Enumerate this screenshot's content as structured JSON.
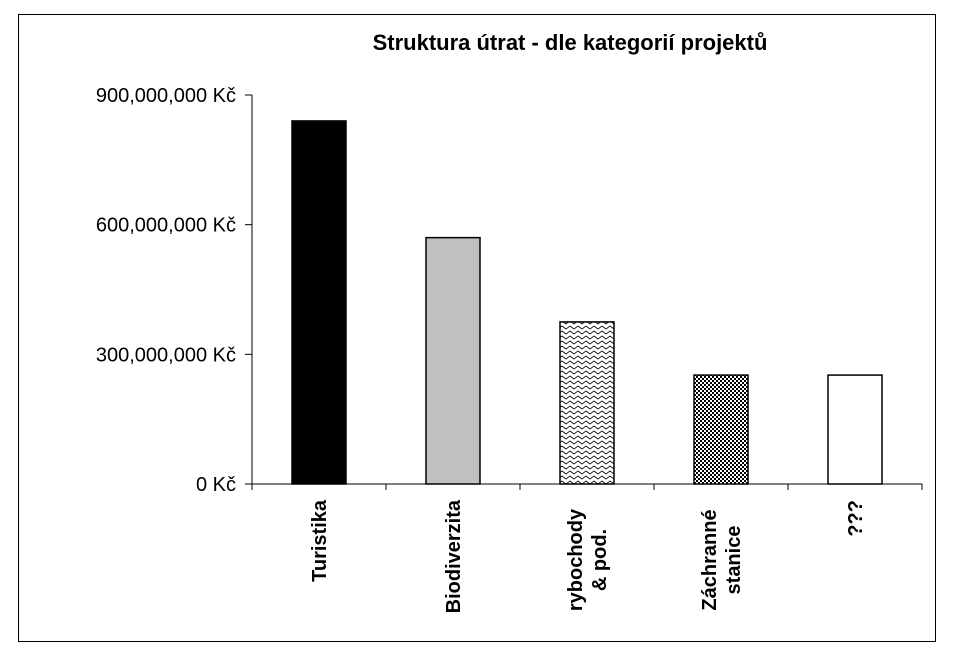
{
  "chart_data": {
    "type": "bar",
    "title": "Struktura útrat - dle kategorií projektů",
    "xlabel": "",
    "ylabel": "",
    "categories": [
      [
        "Turistika"
      ],
      [
        "Biodiverzita"
      ],
      [
        "rybochody",
        "& pod."
      ],
      [
        "Záchranné",
        "stanice"
      ],
      [
        "???"
      ]
    ],
    "values": [
      840000000,
      570000000,
      375000000,
      252000000,
      252000000
    ],
    "ylim": [
      0,
      900000000
    ],
    "yticks": [
      0,
      300000000,
      600000000,
      900000000
    ],
    "ytick_labels": [
      "0 Kč",
      "300,000,000 Kč",
      "600,000,000 Kč",
      "900,000,000 Kč"
    ],
    "fills": [
      "solid-black",
      "solid-gray",
      "wave-pattern",
      "checker-pattern",
      "white"
    ],
    "colors": {
      "black": "#000000",
      "gray": "#c0c0c0",
      "white": "#ffffff"
    },
    "grid": false,
    "legend": "none"
  }
}
